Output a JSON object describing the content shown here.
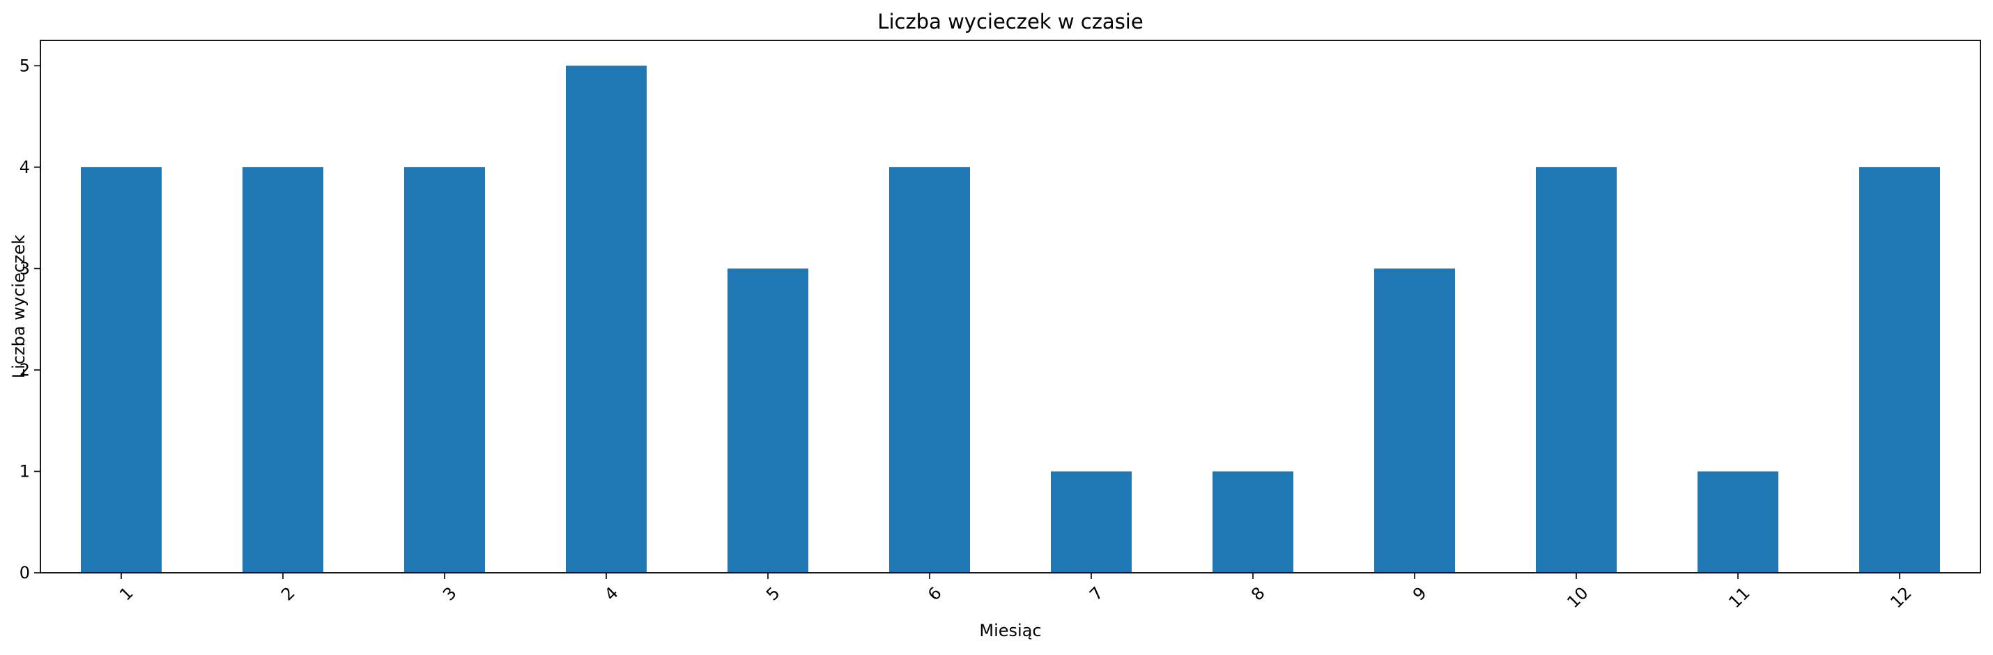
{
  "chart_data": {
    "type": "bar",
    "title": "Liczba wycieczek w czasie",
    "xlabel": "Miesiąc",
    "ylabel": "Liczba wycieczek",
    "categories": [
      "1",
      "2",
      "3",
      "4",
      "5",
      "6",
      "7",
      "8",
      "9",
      "10",
      "11",
      "12"
    ],
    "values": [
      4,
      4,
      4,
      5,
      3,
      4,
      1,
      1,
      3,
      4,
      1,
      4
    ],
    "ylim": [
      0,
      5.25
    ],
    "yticks": [
      0,
      1,
      2,
      3,
      4,
      5
    ],
    "bar_color": "#1f77b4",
    "grid": false,
    "xtick_rotation": 45
  }
}
